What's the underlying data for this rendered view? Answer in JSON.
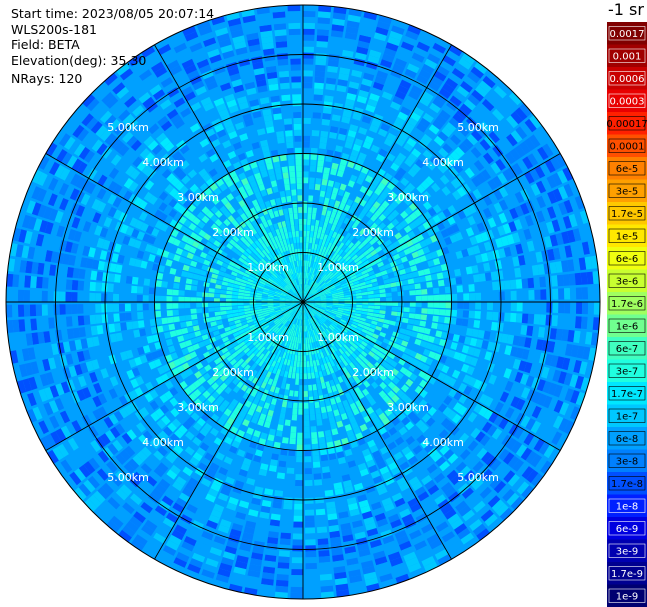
{
  "header": {
    "start_time": "Start time: 2023/08/05 20:07:14",
    "instrument": "WLS200s-181",
    "field": "Field: BETA",
    "elevation": "Elevation(deg): 35.30",
    "nrays": "NRays: 120"
  },
  "unit_label": "-1 sr",
  "chart_data": {
    "type": "heatmap",
    "projection": "polar-ppi",
    "field": "BETA",
    "elevation_deg": 35.3,
    "n_rays": 120,
    "range_max_km": 6.0,
    "range_rings_km": [
      1,
      2,
      3,
      4,
      5
    ],
    "ring_labels": [
      "1.00km",
      "2.00km",
      "3.00km",
      "4.00km",
      "5.00km"
    ],
    "spoke_angles_deg": [
      0,
      30,
      60,
      90,
      120,
      150,
      180,
      210,
      240,
      270,
      300,
      330
    ],
    "colorbar": {
      "labels": [
        "0.0017",
        "0.001",
        "0.0006",
        "0.0003",
        "0.00017",
        "0.0001",
        "6e-5",
        "3e-5",
        "1.7e-5",
        "1e-5",
        "6e-6",
        "3e-6",
        "1.7e-6",
        "1e-6",
        "6e-7",
        "3e-7",
        "1.7e-7",
        "1e-7",
        "6e-8",
        "3e-8",
        "1.7e-8",
        "1e-8",
        "6e-9",
        "3e-9",
        "1.7e-9",
        "1e-9"
      ],
      "colors": [
        "#800000",
        "#a00000",
        "#c80000",
        "#e80000",
        "#ff2000",
        "#ff5000",
        "#ff8000",
        "#ffa000",
        "#ffc800",
        "#ffe800",
        "#f0ff10",
        "#c8ff30",
        "#a0ff60",
        "#70ff90",
        "#40ffc0",
        "#20ffe0",
        "#00e8ff",
        "#00c8ff",
        "#00a0ff",
        "#0080ff",
        "#0050ff",
        "#0020ff",
        "#0000e0",
        "#0000b0",
        "#000090",
        "#000070"
      ],
      "text_colors": [
        "#ffffff",
        "#ffffff",
        "#ffffff",
        "#ffffff",
        "#000000",
        "#000000",
        "#000000",
        "#000000",
        "#000000",
        "#000000",
        "#000000",
        "#000000",
        "#000000",
        "#000000",
        "#000000",
        "#000000",
        "#000000",
        "#000000",
        "#000000",
        "#000000",
        "#000000",
        "#ffffff",
        "#ffffff",
        "#ffffff",
        "#ffffff",
        "#ffffff"
      ]
    }
  }
}
